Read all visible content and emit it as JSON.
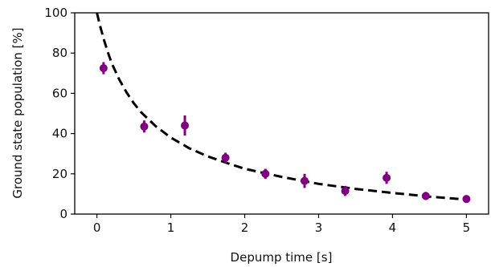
{
  "chart_data": {
    "type": "scatter",
    "title": "",
    "xlabel": "Depump time [s]",
    "ylabel": "Ground state population [%]",
    "xlim": [
      -0.3,
      5.3
    ],
    "ylim": [
      0,
      100
    ],
    "xticks": [
      0,
      1,
      2,
      3,
      4,
      5
    ],
    "yticks": [
      0,
      20,
      40,
      60,
      80,
      100
    ],
    "xtick_labels": [
      "0",
      "1",
      "2",
      "3",
      "4",
      "5"
    ],
    "ytick_labels": [
      "0",
      "20",
      "40",
      "60",
      "80",
      "100"
    ],
    "grid": false,
    "legend": "none",
    "colors": {
      "points": "#800080",
      "fit": "#000000"
    },
    "series": [
      {
        "kind": "points-with-errorbars",
        "x": [
          0.09,
          0.64,
          1.19,
          1.74,
          2.28,
          2.81,
          3.36,
          3.92,
          4.45,
          5.0
        ],
        "y": [
          72.5,
          43.5,
          44.0,
          28.0,
          20.0,
          16.5,
          11.5,
          18.0,
          9.0,
          7.5
        ],
        "err": [
          3.0,
          3.0,
          5.0,
          2.5,
          2.5,
          3.5,
          2.5,
          3.0,
          2.0,
          1.0
        ]
      },
      {
        "kind": "fit-dashed",
        "x": [
          0.0,
          0.05,
          0.1,
          0.15,
          0.2,
          0.3,
          0.4,
          0.5,
          0.6,
          0.8,
          1.0,
          1.25,
          1.5,
          1.75,
          2.0,
          2.5,
          3.0,
          3.5,
          4.0,
          4.5,
          5.0
        ],
        "y": [
          100,
          92.5,
          86.0,
          80.2,
          75.0,
          67.0,
          60.5,
          55.0,
          50.5,
          43.5,
          38.0,
          32.7,
          28.7,
          25.5,
          22.5,
          18.5,
          15.0,
          12.5,
          10.5,
          8.7,
          7.2
        ]
      }
    ]
  }
}
